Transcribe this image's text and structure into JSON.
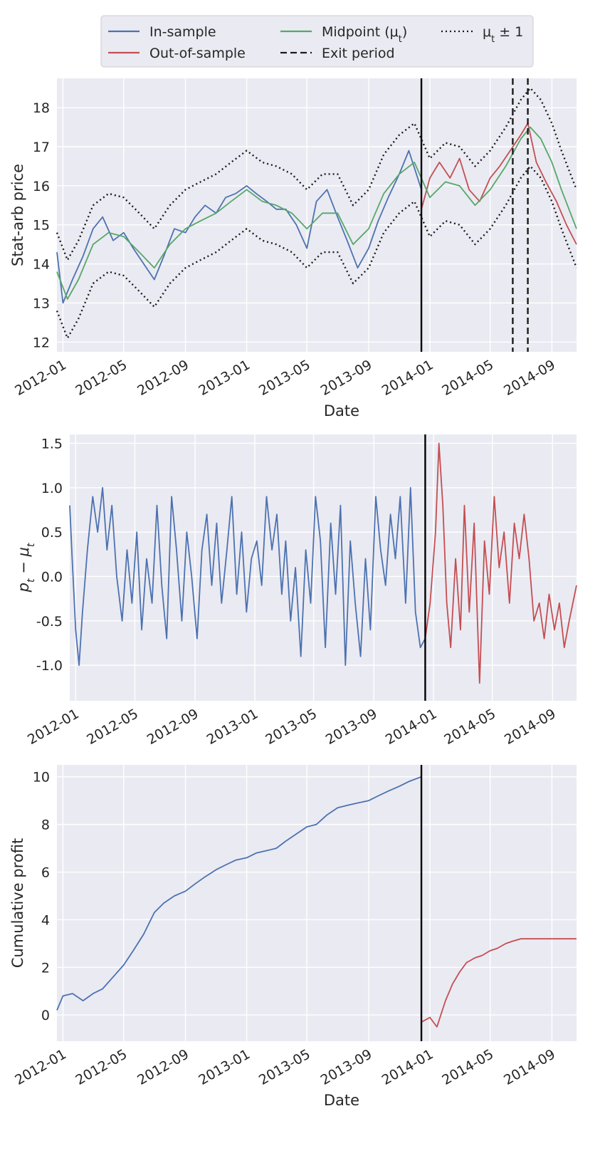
{
  "colors": {
    "in_sample": "#4c72b0",
    "out_of_sample": "#c44e52",
    "midpoint": "#55a868",
    "band": "#1a1a1a",
    "exit": "#1a1a1a",
    "split": "#000000",
    "axes_bg": "#eaeaf2",
    "grid": "#ffffff"
  },
  "legend": {
    "entries": [
      {
        "label": "In-sample",
        "style": "solid",
        "color": "#4c72b0"
      },
      {
        "label": "Out-of-sample",
        "style": "solid",
        "color": "#c44e52"
      },
      {
        "label": "Midpoint (μ",
        "sub": "t",
        "tail": ")",
        "style": "solid",
        "color": "#55a868"
      },
      {
        "label": "Exit period",
        "style": "dashed",
        "color": "#1a1a1a"
      },
      {
        "label": "μ",
        "sub": "t",
        "tail": " ± 1",
        "style": "dotted",
        "color": "#1a1a1a"
      }
    ]
  },
  "chart_data": [
    {
      "type": "line",
      "id": "price",
      "xlabel": "Date",
      "ylabel": "Stat-arb price",
      "ylim": [
        11.75,
        18.75
      ],
      "yticks": [
        12,
        13,
        14,
        15,
        16,
        17,
        18
      ],
      "xlim": [
        "2011-12-20",
        "2014-10-20"
      ],
      "xticks": [
        "2012-01",
        "2012-05",
        "2012-09",
        "2013-01",
        "2013-05",
        "2013-09",
        "2014-01",
        "2014-05",
        "2014-09"
      ],
      "split_date": "2013-12-15",
      "exit_dates": [
        "2014-06-15",
        "2014-07-15"
      ],
      "grid": true,
      "series": [
        {
          "name": "In-sample",
          "role": "in_sample",
          "x": [
            "2011-12-20",
            "2012-01-01",
            "2012-01-20",
            "2012-02-10",
            "2012-03-01",
            "2012-03-20",
            "2012-04-10",
            "2012-05-01",
            "2012-05-20",
            "2012-06-10",
            "2012-07-01",
            "2012-07-20",
            "2012-08-10",
            "2012-09-01",
            "2012-09-20",
            "2012-10-10",
            "2012-11-01",
            "2012-11-20",
            "2012-12-10",
            "2013-01-01",
            "2013-01-20",
            "2013-02-10",
            "2013-03-01",
            "2013-03-20",
            "2013-04-10",
            "2013-05-01",
            "2013-05-20",
            "2013-06-10",
            "2013-07-01",
            "2013-07-20",
            "2013-08-10",
            "2013-09-01",
            "2013-09-20",
            "2013-10-10",
            "2013-11-01",
            "2013-11-20",
            "2013-12-15"
          ],
          "y": [
            14.3,
            13.0,
            13.6,
            14.2,
            14.9,
            15.2,
            14.6,
            14.8,
            14.4,
            14.0,
            13.6,
            14.2,
            14.9,
            14.8,
            15.2,
            15.5,
            15.3,
            15.7,
            15.8,
            16.0,
            15.8,
            15.6,
            15.4,
            15.4,
            15.0,
            14.4,
            15.6,
            15.9,
            15.2,
            14.6,
            13.9,
            14.4,
            15.1,
            15.7,
            16.3,
            16.9,
            15.9
          ]
        },
        {
          "name": "Out-of-sample",
          "role": "out_of_sample",
          "x": [
            "2013-12-15",
            "2014-01-01",
            "2014-01-20",
            "2014-02-10",
            "2014-03-01",
            "2014-03-20",
            "2014-04-10",
            "2014-05-01",
            "2014-05-20",
            "2014-06-10",
            "2014-07-01",
            "2014-07-15",
            "2014-08-01",
            "2014-08-20",
            "2014-09-10",
            "2014-09-30",
            "2014-10-20"
          ],
          "y": [
            15.4,
            16.2,
            16.6,
            16.2,
            16.7,
            15.9,
            15.6,
            16.2,
            16.5,
            16.9,
            17.3,
            17.6,
            16.6,
            16.1,
            15.6,
            15.0,
            14.5
          ]
        },
        {
          "name": "Midpoint (μt)",
          "role": "midpoint",
          "x": [
            "2011-12-20",
            "2012-01-10",
            "2012-02-01",
            "2012-03-01",
            "2012-04-01",
            "2012-05-01",
            "2012-06-01",
            "2012-07-01",
            "2012-08-01",
            "2012-09-01",
            "2012-10-01",
            "2012-11-01",
            "2012-12-01",
            "2013-01-01",
            "2013-02-01",
            "2013-03-01",
            "2013-04-01",
            "2013-05-01",
            "2013-06-01",
            "2013-07-01",
            "2013-08-01",
            "2013-09-01",
            "2013-10-01",
            "2013-11-01",
            "2013-12-01",
            "2014-01-01",
            "2014-02-01",
            "2014-03-01",
            "2014-04-01",
            "2014-05-01",
            "2014-06-01",
            "2014-07-01",
            "2014-07-20",
            "2014-08-10",
            "2014-09-01",
            "2014-09-20",
            "2014-10-20"
          ],
          "y": [
            13.8,
            13.1,
            13.6,
            14.5,
            14.8,
            14.7,
            14.3,
            13.9,
            14.5,
            14.9,
            15.1,
            15.3,
            15.6,
            15.9,
            15.6,
            15.5,
            15.3,
            14.9,
            15.3,
            15.3,
            14.5,
            14.9,
            15.8,
            16.3,
            16.6,
            15.7,
            16.1,
            16.0,
            15.5,
            15.9,
            16.5,
            17.2,
            17.5,
            17.2,
            16.6,
            15.9,
            14.9
          ]
        },
        {
          "name": "μt + 1",
          "role": "band",
          "x": [
            "2011-12-20",
            "2012-01-10",
            "2012-02-01",
            "2012-03-01",
            "2012-04-01",
            "2012-05-01",
            "2012-06-01",
            "2012-07-01",
            "2012-08-01",
            "2012-09-01",
            "2012-10-01",
            "2012-11-01",
            "2012-12-01",
            "2013-01-01",
            "2013-02-01",
            "2013-03-01",
            "2013-04-01",
            "2013-05-01",
            "2013-06-01",
            "2013-07-01",
            "2013-08-01",
            "2013-09-01",
            "2013-10-01",
            "2013-11-01",
            "2013-12-01",
            "2014-01-01",
            "2014-02-01",
            "2014-03-01",
            "2014-04-01",
            "2014-05-01",
            "2014-06-01",
            "2014-07-01",
            "2014-07-20",
            "2014-08-10",
            "2014-09-01",
            "2014-09-20",
            "2014-10-20"
          ],
          "y": [
            14.8,
            14.1,
            14.6,
            15.5,
            15.8,
            15.7,
            15.3,
            14.9,
            15.5,
            15.9,
            16.1,
            16.3,
            16.6,
            16.9,
            16.6,
            16.5,
            16.3,
            15.9,
            16.3,
            16.3,
            15.5,
            15.9,
            16.8,
            17.3,
            17.6,
            16.7,
            17.1,
            17.0,
            16.5,
            16.9,
            17.5,
            18.2,
            18.5,
            18.2,
            17.6,
            16.9,
            15.9
          ]
        },
        {
          "name": "μt − 1",
          "role": "band",
          "x": [
            "2011-12-20",
            "2012-01-10",
            "2012-02-01",
            "2012-03-01",
            "2012-04-01",
            "2012-05-01",
            "2012-06-01",
            "2012-07-01",
            "2012-08-01",
            "2012-09-01",
            "2012-10-01",
            "2012-11-01",
            "2012-12-01",
            "2013-01-01",
            "2013-02-01",
            "2013-03-01",
            "2013-04-01",
            "2013-05-01",
            "2013-06-01",
            "2013-07-01",
            "2013-08-01",
            "2013-09-01",
            "2013-10-01",
            "2013-11-01",
            "2013-12-01",
            "2014-01-01",
            "2014-02-01",
            "2014-03-01",
            "2014-04-01",
            "2014-05-01",
            "2014-06-01",
            "2014-07-01",
            "2014-07-20",
            "2014-08-10",
            "2014-09-01",
            "2014-09-20",
            "2014-10-20"
          ],
          "y": [
            12.8,
            12.1,
            12.6,
            13.5,
            13.8,
            13.7,
            13.3,
            12.9,
            13.5,
            13.9,
            14.1,
            14.3,
            14.6,
            14.9,
            14.6,
            14.5,
            14.3,
            13.9,
            14.3,
            14.3,
            13.5,
            13.9,
            14.8,
            15.3,
            15.6,
            14.7,
            15.1,
            15.0,
            14.5,
            14.9,
            15.5,
            16.2,
            16.5,
            16.2,
            15.6,
            14.9,
            13.9
          ]
        }
      ]
    },
    {
      "type": "line",
      "id": "deviation",
      "xlabel": "",
      "ylabel": "p",
      "ylabel_sub1": "t",
      "ylabel_mid": " − μ",
      "ylabel_sub2": "t",
      "ylim": [
        -1.4,
        1.6
      ],
      "yticks": [
        -1.0,
        -0.5,
        0.0,
        0.5,
        1.0,
        1.5
      ],
      "xlim": [
        "2011-12-20",
        "2014-10-20"
      ],
      "xticks": [
        "2012-01",
        "2012-05",
        "2012-09",
        "2013-01",
        "2013-05",
        "2013-09",
        "2014-01",
        "2014-05",
        "2014-09"
      ],
      "split_date": "2013-12-15",
      "grid": true,
      "series": [
        {
          "name": "In-sample",
          "role": "in_sample",
          "x": [
            "2011-12-20",
            "2011-12-25",
            "2012-01-01",
            "2012-01-08",
            "2012-01-15",
            "2012-01-25",
            "2012-02-05",
            "2012-02-15",
            "2012-02-25",
            "2012-03-05",
            "2012-03-15",
            "2012-03-25",
            "2012-04-05",
            "2012-04-15",
            "2012-04-25",
            "2012-05-05",
            "2012-05-15",
            "2012-05-25",
            "2012-06-05",
            "2012-06-15",
            "2012-06-25",
            "2012-07-05",
            "2012-07-15",
            "2012-07-25",
            "2012-08-05",
            "2012-08-15",
            "2012-08-25",
            "2012-09-05",
            "2012-09-15",
            "2012-09-25",
            "2012-10-05",
            "2012-10-15",
            "2012-10-25",
            "2012-11-05",
            "2012-11-15",
            "2012-11-25",
            "2012-12-05",
            "2012-12-15",
            "2012-12-25",
            "2013-01-05",
            "2013-01-15",
            "2013-01-25",
            "2013-02-05",
            "2013-02-15",
            "2013-02-25",
            "2013-03-05",
            "2013-03-15",
            "2013-03-25",
            "2013-04-05",
            "2013-04-15",
            "2013-04-25",
            "2013-05-05",
            "2013-05-15",
            "2013-05-25",
            "2013-06-05",
            "2013-06-15",
            "2013-06-25",
            "2013-07-05",
            "2013-07-15",
            "2013-07-25",
            "2013-08-05",
            "2013-08-15",
            "2013-08-25",
            "2013-09-05",
            "2013-09-15",
            "2013-09-25",
            "2013-10-05",
            "2013-10-15",
            "2013-10-25",
            "2013-11-05",
            "2013-11-15",
            "2013-11-25",
            "2013-12-05",
            "2013-12-15"
          ],
          "y": [
            0.8,
            0.2,
            -0.6,
            -1.0,
            -0.4,
            0.3,
            0.9,
            0.5,
            1.0,
            0.3,
            0.8,
            0.0,
            -0.5,
            0.3,
            -0.3,
            0.5,
            -0.6,
            0.2,
            -0.3,
            0.8,
            -0.1,
            -0.7,
            0.9,
            0.3,
            -0.5,
            0.5,
            0.0,
            -0.7,
            0.3,
            0.7,
            -0.1,
            0.6,
            -0.3,
            0.3,
            0.9,
            -0.2,
            0.5,
            -0.4,
            0.2,
            0.4,
            -0.1,
            0.9,
            0.3,
            0.7,
            -0.2,
            0.4,
            -0.5,
            0.1,
            -0.9,
            0.3,
            -0.3,
            0.9,
            0.4,
            -0.8,
            0.6,
            -0.2,
            0.8,
            -1.0,
            0.4,
            -0.3,
            -0.9,
            0.2,
            -0.6,
            0.9,
            0.3,
            -0.1,
            0.7,
            0.2,
            0.9,
            -0.3,
            1.0,
            -0.4,
            -0.8,
            -0.7
          ]
        },
        {
          "name": "Out-of-sample",
          "role": "out_of_sample",
          "x": [
            "2013-12-15",
            "2013-12-25",
            "2014-01-05",
            "2014-01-12",
            "2014-01-20",
            "2014-01-28",
            "2014-02-05",
            "2014-02-15",
            "2014-02-25",
            "2014-03-05",
            "2014-03-15",
            "2014-03-25",
            "2014-04-05",
            "2014-04-15",
            "2014-04-25",
            "2014-05-05",
            "2014-05-15",
            "2014-05-25",
            "2014-06-05",
            "2014-06-15",
            "2014-06-25",
            "2014-07-05",
            "2014-07-15",
            "2014-07-25",
            "2014-08-05",
            "2014-08-15",
            "2014-08-25",
            "2014-09-05",
            "2014-09-15",
            "2014-09-25",
            "2014-10-05",
            "2014-10-20"
          ],
          "y": [
            -0.7,
            -0.3,
            0.5,
            1.5,
            0.8,
            -0.3,
            -0.8,
            0.2,
            -0.6,
            0.8,
            -0.4,
            0.6,
            -1.2,
            0.4,
            -0.2,
            0.9,
            0.1,
            0.5,
            -0.3,
            0.6,
            0.2,
            0.7,
            0.2,
            -0.5,
            -0.3,
            -0.7,
            -0.2,
            -0.6,
            -0.3,
            -0.8,
            -0.5,
            -0.1
          ]
        }
      ]
    },
    {
      "type": "line",
      "id": "profit",
      "xlabel": "Date",
      "ylabel": "Cumulative profit",
      "ylim": [
        -1.1,
        10.5
      ],
      "yticks": [
        0,
        2,
        4,
        6,
        8,
        10
      ],
      "xlim": [
        "2011-12-20",
        "2014-10-20"
      ],
      "xticks": [
        "2012-01",
        "2012-05",
        "2012-09",
        "2013-01",
        "2013-05",
        "2013-09",
        "2014-01",
        "2014-05",
        "2014-09"
      ],
      "split_date": "2013-12-15",
      "grid": true,
      "series": [
        {
          "name": "In-sample",
          "role": "in_sample",
          "x": [
            "2011-12-20",
            "2012-01-01",
            "2012-01-20",
            "2012-02-10",
            "2012-03-01",
            "2012-03-20",
            "2012-04-10",
            "2012-05-01",
            "2012-05-20",
            "2012-06-10",
            "2012-07-01",
            "2012-07-20",
            "2012-08-10",
            "2012-09-01",
            "2012-09-20",
            "2012-10-10",
            "2012-11-01",
            "2012-11-20",
            "2012-12-10",
            "2013-01-01",
            "2013-01-20",
            "2013-02-10",
            "2013-03-01",
            "2013-03-20",
            "2013-04-10",
            "2013-05-01",
            "2013-05-20",
            "2013-06-10",
            "2013-07-01",
            "2013-07-20",
            "2013-08-10",
            "2013-09-01",
            "2013-09-20",
            "2013-10-10",
            "2013-11-01",
            "2013-11-20",
            "2013-12-15"
          ],
          "y": [
            0.2,
            0.8,
            0.9,
            0.6,
            0.9,
            1.1,
            1.6,
            2.1,
            2.7,
            3.4,
            4.3,
            4.7,
            5.0,
            5.2,
            5.5,
            5.8,
            6.1,
            6.3,
            6.5,
            6.6,
            6.8,
            6.9,
            7.0,
            7.3,
            7.6,
            7.9,
            8.0,
            8.4,
            8.7,
            8.8,
            8.9,
            9.0,
            9.2,
            9.4,
            9.6,
            9.8,
            10.0
          ]
        },
        {
          "name": "Out-of-sample",
          "role": "out_of_sample",
          "x": [
            "2013-12-15",
            "2014-01-01",
            "2014-01-15",
            "2014-02-01",
            "2014-02-15",
            "2014-03-01",
            "2014-03-15",
            "2014-04-01",
            "2014-04-15",
            "2014-05-01",
            "2014-05-15",
            "2014-06-01",
            "2014-06-15",
            "2014-07-01",
            "2014-07-15",
            "2014-08-01",
            "2014-09-01",
            "2014-10-20"
          ],
          "y": [
            -0.3,
            -0.1,
            -0.5,
            0.6,
            1.3,
            1.8,
            2.2,
            2.4,
            2.5,
            2.7,
            2.8,
            3.0,
            3.1,
            3.2,
            3.2,
            3.2,
            3.2,
            3.2
          ]
        }
      ]
    }
  ]
}
